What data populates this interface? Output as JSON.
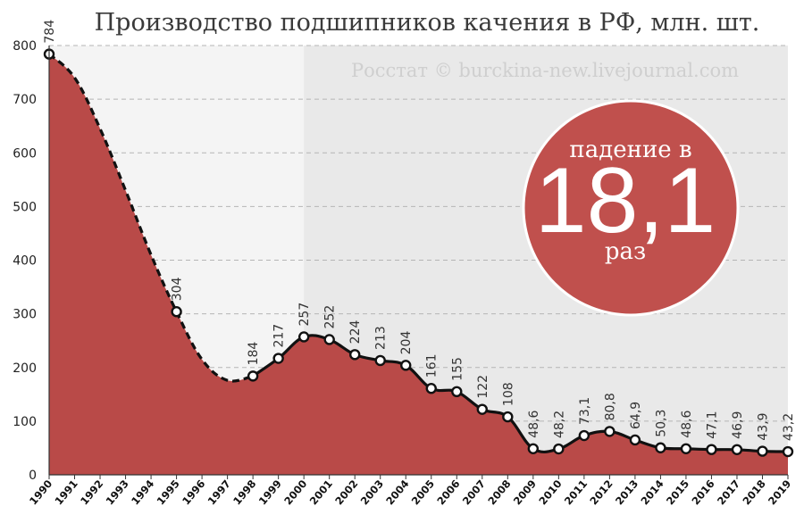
{
  "title": "Производство подшипников качения в РФ, млн. шт.",
  "watermark": "Росстат © burckina-new.livejournal.com",
  "badge": {
    "line1": "падение в",
    "number": "18,1",
    "line2": "раз"
  },
  "colors": {
    "area": "#b94a48",
    "badge": "#c0504d",
    "line": "#111111",
    "bg_left": "#f4f4f4",
    "bg_right": "#e9e9e9"
  },
  "chart_data": {
    "type": "area",
    "title": "Производство подшипников качения в РФ, млн. шт.",
    "xlabel": "",
    "ylabel": "",
    "ylim": [
      0,
      800
    ],
    "yticks": [
      0,
      100,
      200,
      300,
      400,
      500,
      600,
      700,
      800
    ],
    "grid": true,
    "x": [
      "1990",
      "1991",
      "1992",
      "1993",
      "1994",
      "1995",
      "1996",
      "1997",
      "1998",
      "1999",
      "2000",
      "2001",
      "2002",
      "2003",
      "2004",
      "2005",
      "2006",
      "2007",
      "2008",
      "2009",
      "2010",
      "2011",
      "2012",
      "2013",
      "2014",
      "2015",
      "2016",
      "2017",
      "2018",
      "2019"
    ],
    "points": [
      {
        "year": "1990",
        "value": 784,
        "label": "784"
      },
      {
        "year": "1995",
        "value": 304,
        "label": "304"
      },
      {
        "year": "1998",
        "value": 184,
        "label": "184"
      },
      {
        "year": "1999",
        "value": 217,
        "label": "217"
      },
      {
        "year": "2000",
        "value": 257,
        "label": "257"
      },
      {
        "year": "2001",
        "value": 252,
        "label": "252"
      },
      {
        "year": "2002",
        "value": 224,
        "label": "224"
      },
      {
        "year": "2003",
        "value": 213,
        "label": "213"
      },
      {
        "year": "2004",
        "value": 204,
        "label": "204"
      },
      {
        "year": "2005",
        "value": 161,
        "label": "161"
      },
      {
        "year": "2006",
        "value": 155,
        "label": "155"
      },
      {
        "year": "2007",
        "value": 122,
        "label": "122"
      },
      {
        "year": "2008",
        "value": 108,
        "label": "108"
      },
      {
        "year": "2009",
        "value": 48.6,
        "label": "48,6"
      },
      {
        "year": "2010",
        "value": 48.2,
        "label": "48,2"
      },
      {
        "year": "2011",
        "value": 73.1,
        "label": "73,1"
      },
      {
        "year": "2012",
        "value": 80.8,
        "label": "80,8"
      },
      {
        "year": "2013",
        "value": 64.9,
        "label": "64,9"
      },
      {
        "year": "2014",
        "value": 50.3,
        "label": "50,3"
      },
      {
        "year": "2015",
        "value": 48.6,
        "label": "48,6"
      },
      {
        "year": "2016",
        "value": 47.1,
        "label": "47,1"
      },
      {
        "year": "2017",
        "value": 46.9,
        "label": "46,9"
      },
      {
        "year": "2018",
        "value": 43.9,
        "label": "43,9"
      },
      {
        "year": "2019",
        "value": 43.2,
        "label": "43,2"
      }
    ],
    "estimated_curve_1990_1998": [
      {
        "year": "1991",
        "value": 740
      },
      {
        "year": "1992",
        "value": 645
      },
      {
        "year": "1993",
        "value": 530
      },
      {
        "year": "1994",
        "value": 410
      },
      {
        "year": "1996",
        "value": 215
      },
      {
        "year": "1997",
        "value": 176
      }
    ]
  }
}
